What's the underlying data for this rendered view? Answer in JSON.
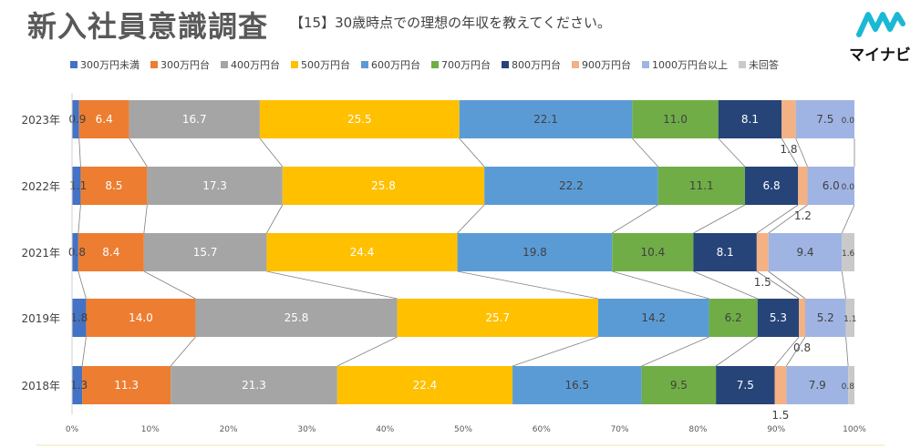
{
  "header": {
    "title": "新入社員意識調査",
    "question": "【15】30歳時点での理想の年収を教えてください。",
    "logo_text": "マイナビ",
    "logo_color": "#1bb8d6"
  },
  "chart_data": {
    "type": "bar",
    "orientation": "horizontal",
    "stacked": "percent",
    "categories": [
      "2023年",
      "2022年",
      "2021年",
      "2019年",
      "2018年"
    ],
    "series": [
      {
        "name": "300万円未満",
        "color": "#4472c4",
        "label_color": "#404040",
        "values": [
          0.9,
          1.1,
          0.8,
          1.8,
          1.3
        ]
      },
      {
        "name": "300万円台",
        "color": "#ed7d31",
        "label_color": "#ffffff",
        "values": [
          6.4,
          8.5,
          8.4,
          14.0,
          11.3
        ]
      },
      {
        "name": "400万円台",
        "color": "#a5a5a5",
        "label_color": "#ffffff",
        "values": [
          16.7,
          17.3,
          15.7,
          25.8,
          21.3
        ]
      },
      {
        "name": "500万円台",
        "color": "#ffc000",
        "label_color": "#ffffff",
        "values": [
          25.5,
          25.8,
          24.4,
          25.7,
          22.4
        ]
      },
      {
        "name": "600万円台",
        "color": "#5b9bd5",
        "label_color": "#404040",
        "values": [
          22.1,
          22.2,
          19.8,
          14.2,
          16.5
        ]
      },
      {
        "name": "700万円台",
        "color": "#70ad47",
        "label_color": "#404040",
        "values": [
          11.0,
          11.1,
          10.4,
          6.2,
          9.5
        ]
      },
      {
        "name": "800万円台",
        "color": "#264478",
        "label_color": "#ffffff",
        "values": [
          8.1,
          6.8,
          8.1,
          5.3,
          7.5
        ]
      },
      {
        "name": "900万円台",
        "color": "#f4b183",
        "label_color": "#404040",
        "values": [
          1.8,
          1.2,
          1.5,
          0.8,
          1.5
        ]
      },
      {
        "name": "1000万円台以上",
        "color": "#9fb4e3",
        "label_color": "#404040",
        "values": [
          7.5,
          6.0,
          9.4,
          5.2,
          7.9
        ]
      },
      {
        "name": "未回答",
        "color": "#c9c9c9",
        "label_color": "#404040",
        "values": [
          0.0,
          0.0,
          1.6,
          1.1,
          0.8
        ]
      }
    ],
    "outside_label_series": "900万円台",
    "x_ticks": [
      "0%",
      "10%",
      "20%",
      "30%",
      "40%",
      "50%",
      "60%",
      "70%",
      "80%",
      "90%",
      "100%"
    ],
    "xlim": [
      0,
      100
    ],
    "legend_position": "top",
    "connector_lines": true,
    "grid": false
  }
}
